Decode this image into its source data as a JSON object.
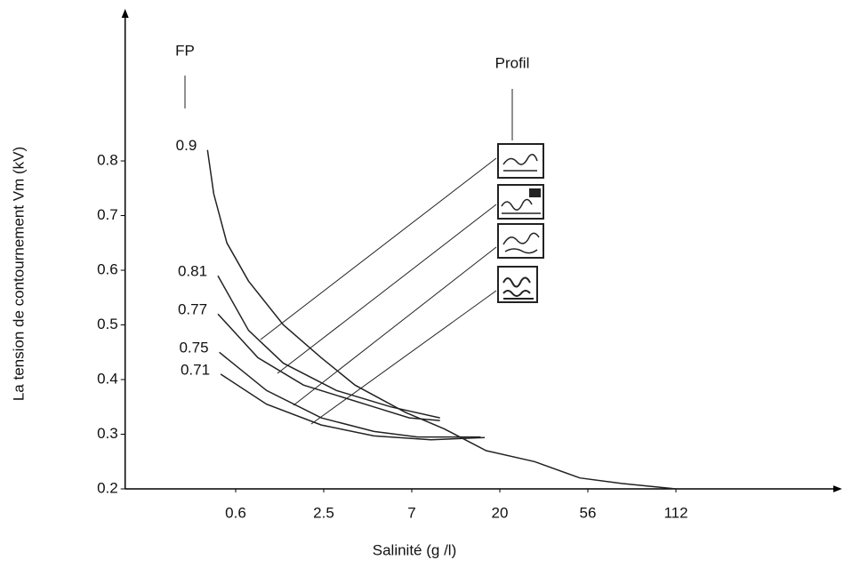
{
  "chart_data": {
    "type": "line",
    "y_label": "La tension de contournement  Vm (kV)",
    "x_label": "Salinité (g /l)",
    "series_title": "FP",
    "icons_title": "Profil",
    "x_scale": "log",
    "xlim": [
      0.1,
      400
    ],
    "xticks": [
      0.6,
      2.5,
      7,
      20,
      56,
      112
    ],
    "ylim": [
      0.2,
      1.07
    ],
    "yticks": [
      0.2,
      0.3,
      0.4,
      0.5,
      0.6,
      0.7,
      0.8
    ],
    "grid": false,
    "series": [
      {
        "name": "0.9",
        "color": "#222222",
        "x": [
          0.38,
          0.42,
          0.52,
          0.74,
          1.3,
          2.4,
          3.6,
          6.5,
          10.3,
          17,
          30,
          51,
          73,
          112
        ],
        "values": [
          0.82,
          0.74,
          0.65,
          0.58,
          0.5,
          0.44,
          0.39,
          0.34,
          0.31,
          0.27,
          0.25,
          0.22,
          0.21,
          0.2
        ]
      },
      {
        "name": "0.81",
        "color": "#222222",
        "x": [
          0.45,
          0.74,
          1.3,
          2.9,
          5.5,
          9.8
        ],
        "values": [
          0.59,
          0.49,
          0.43,
          0.38,
          0.35,
          0.33
        ]
      },
      {
        "name": "0.77",
        "color": "#222222",
        "x": [
          0.45,
          0.86,
          1.8,
          4.5,
          6.8,
          9.8
        ],
        "values": [
          0.52,
          0.44,
          0.39,
          0.35,
          0.33,
          0.325
        ]
      },
      {
        "name": "0.75",
        "color": "#222222",
        "x": [
          0.46,
          0.99,
          2.4,
          4.5,
          7.5,
          15.9
        ],
        "values": [
          0.45,
          0.38,
          0.33,
          0.305,
          0.295,
          0.295
        ]
      },
      {
        "name": "0.71",
        "color": "#222222",
        "x": [
          0.47,
          0.99,
          2.4,
          4.5,
          8.8,
          16.7
        ],
        "values": [
          0.41,
          0.355,
          0.317,
          0.297,
          0.29,
          0.294
        ]
      }
    ]
  }
}
